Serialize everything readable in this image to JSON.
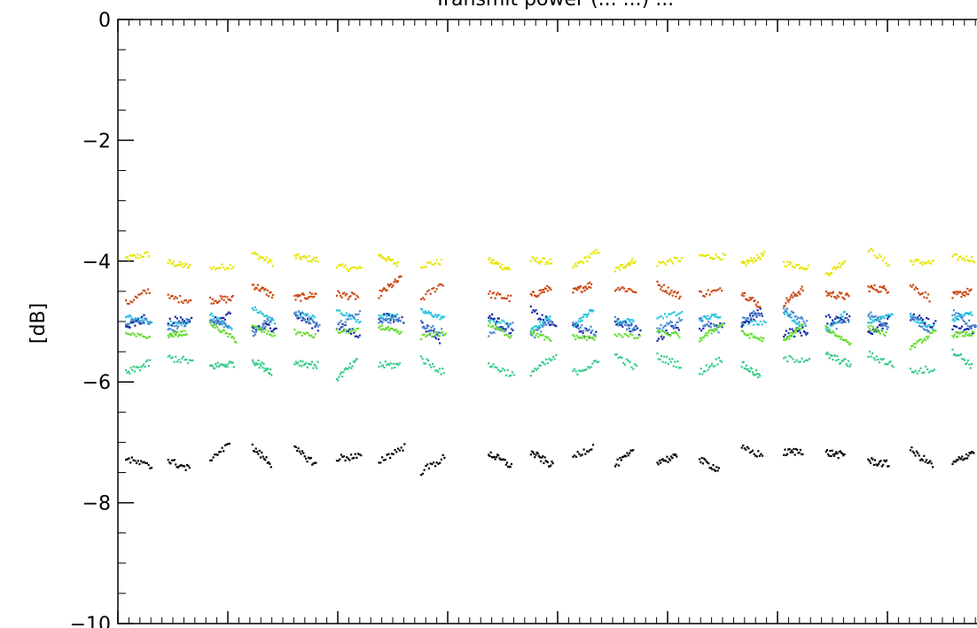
{
  "chart_data": {
    "type": "scatter",
    "title": "Transmit power (... ...) ...",
    "xlabel": "",
    "ylabel": "[dB]",
    "ylim": [
      -10,
      0
    ],
    "yticks": [
      0,
      -2,
      -4,
      -6,
      -8,
      -10
    ],
    "ytick_labels": [
      "0",
      "−2",
      "−4",
      "−6",
      "−8",
      "−10"
    ],
    "x_labels_shown": false,
    "grid": false,
    "legend": "none",
    "segments": 20,
    "gap_after_segment": 8,
    "series": [
      {
        "color": "#e6e600",
        "level": -4.0,
        "jitter": 0.1
      },
      {
        "color": "#cc4a14",
        "level": -4.5,
        "jitter": 0.12
      },
      {
        "color": "#29c5e0",
        "level": -4.95,
        "jitter": 0.08
      },
      {
        "color": "#1a2aa8",
        "level": -5.05,
        "jitter": 0.15
      },
      {
        "color": "#4a8ccf",
        "level": -5.0,
        "jitter": 0.12
      },
      {
        "color": "#66dd33",
        "level": -5.2,
        "jitter": 0.08
      },
      {
        "color": "#33cc88",
        "level": -5.7,
        "jitter": 0.12
      },
      {
        "color": "#000000",
        "level": -7.25,
        "jitter": 0.12
      }
    ]
  }
}
